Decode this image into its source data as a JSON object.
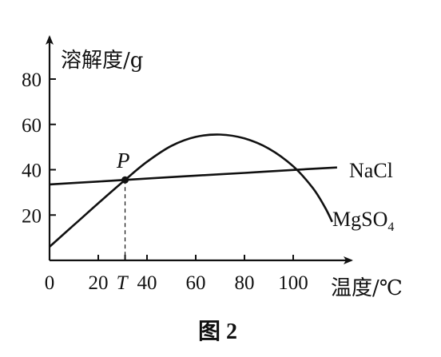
{
  "chart_data": {
    "type": "line",
    "title": "",
    "ylabel": "溶解度/g",
    "xlabel": "温度/℃",
    "caption": "图 2",
    "x_ticks": [
      0,
      20,
      40,
      60,
      80,
      100
    ],
    "y_ticks": [
      20,
      40,
      60,
      80
    ],
    "xlim": [
      0,
      128
    ],
    "ylim": [
      0,
      95
    ],
    "special_x_label": "T",
    "special_x_value": 31,
    "point": {
      "label": "P",
      "x": 31,
      "y": 35.5
    },
    "series": [
      {
        "name": "NaCl",
        "x": [
          0,
          20,
          31,
          40,
          60,
          80,
          100,
          118
        ],
        "y": [
          33.5,
          34.8,
          35.5,
          36.1,
          37.4,
          38.6,
          39.9,
          41.0
        ]
      },
      {
        "name": "MgSO4",
        "name_main": "MgSO",
        "name_sub": "4",
        "x": [
          0,
          10,
          20,
          31,
          40,
          50,
          60,
          70,
          80,
          90,
          100,
          108,
          113,
          116
        ],
        "y": [
          6.0,
          15.6,
          25.2,
          35.5,
          43.5,
          50.5,
          54.5,
          55.5,
          53.8,
          49.3,
          41.5,
          32.0,
          23.5,
          17.0
        ]
      }
    ]
  }
}
